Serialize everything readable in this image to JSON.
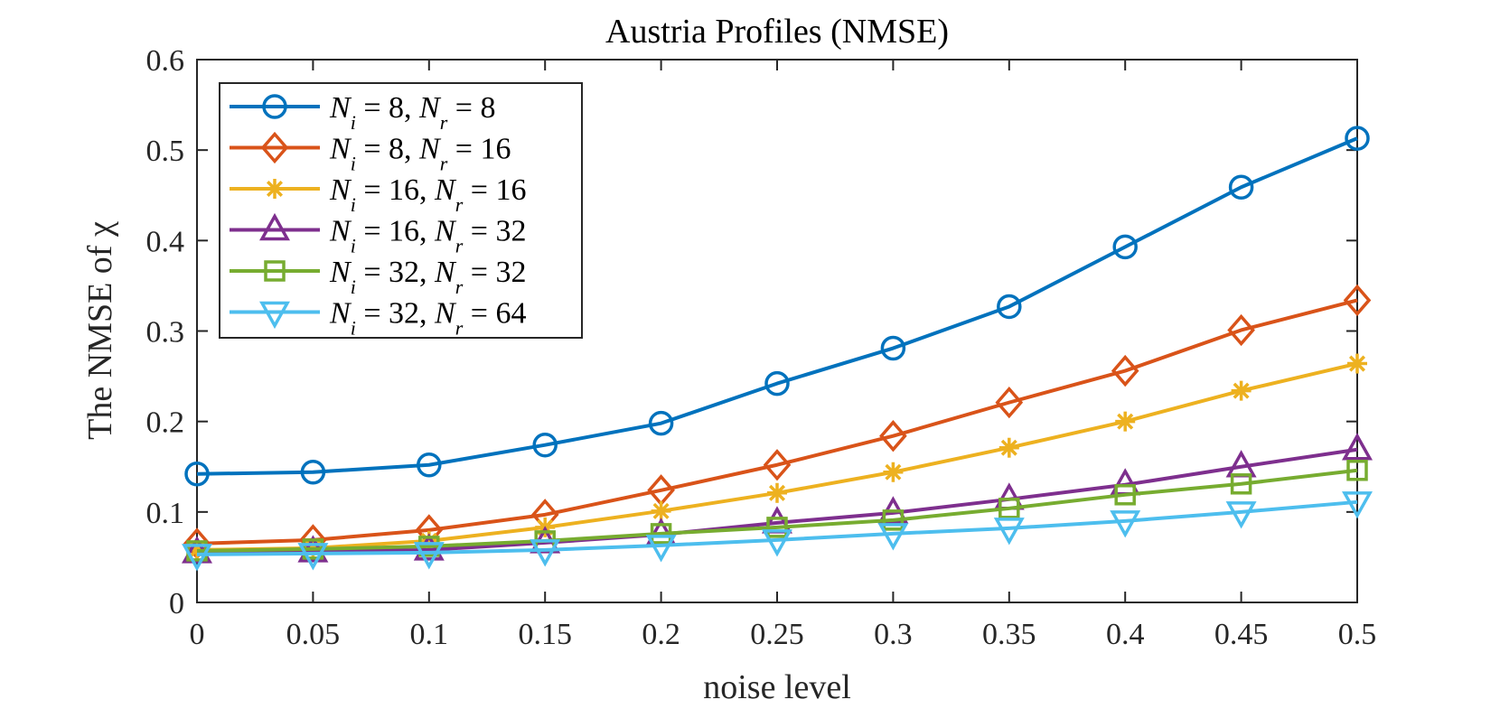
{
  "chart_data": {
    "type": "line",
    "title": "Austria Profiles (NMSE)",
    "xlabel": "noise level",
    "ylabel": "The NMSE of χ",
    "xlim": [
      0,
      0.5
    ],
    "ylim": [
      0,
      0.6
    ],
    "grid": false,
    "legend_position": "top-left",
    "x": [
      0,
      0.05,
      0.1,
      0.15,
      0.2,
      0.25,
      0.3,
      0.35,
      0.4,
      0.45,
      0.5
    ],
    "xticks": [
      "0",
      "0.05",
      "0.1",
      "0.15",
      "0.2",
      "0.25",
      "0.3",
      "0.35",
      "0.4",
      "0.45",
      "0.5"
    ],
    "yticks": [
      "0",
      "0.1",
      "0.2",
      "0.3",
      "0.4",
      "0.5",
      "0.6"
    ],
    "series": [
      {
        "name": "N_i = 8, N_r = 8",
        "label": "Ni = 8, Nr = 8",
        "marker": "circle",
        "color": "#0072BD",
        "values": [
          0.142,
          0.144,
          0.152,
          0.174,
          0.198,
          0.242,
          0.281,
          0.327,
          0.393,
          0.459,
          0.513
        ]
      },
      {
        "name": "N_i = 8, N_r = 16",
        "label": "Ni = 8, Nr = 16",
        "marker": "diamond",
        "color": "#D95319",
        "values": [
          0.065,
          0.069,
          0.08,
          0.097,
          0.124,
          0.152,
          0.184,
          0.221,
          0.256,
          0.301,
          0.334
        ]
      },
      {
        "name": "N_i = 16, N_r = 16",
        "label": "Ni = 16, Nr = 16",
        "marker": "asterisk",
        "color": "#EDB120",
        "values": [
          0.058,
          0.06,
          0.068,
          0.083,
          0.101,
          0.121,
          0.144,
          0.171,
          0.2,
          0.234,
          0.264
        ]
      },
      {
        "name": "N_i = 16, N_r = 32",
        "label": "Ni = 16, Nr = 32",
        "marker": "triangle-up",
        "color": "#7E2F8E",
        "values": [
          0.055,
          0.056,
          0.058,
          0.066,
          0.075,
          0.088,
          0.099,
          0.114,
          0.13,
          0.15,
          0.169
        ]
      },
      {
        "name": "N_i = 32, N_r = 32",
        "label": "Ni = 32, Nr = 32",
        "marker": "square",
        "color": "#77AC30",
        "values": [
          0.057,
          0.059,
          0.062,
          0.068,
          0.076,
          0.083,
          0.091,
          0.104,
          0.119,
          0.131,
          0.146
        ]
      },
      {
        "name": "N_i = 32, N_r = 64",
        "label": "Ni = 32, Nr = 64",
        "marker": "triangle-down",
        "color": "#4DBEEE",
        "values": [
          0.053,
          0.054,
          0.055,
          0.058,
          0.063,
          0.069,
          0.076,
          0.082,
          0.09,
          0.1,
          0.111
        ]
      }
    ],
    "legend": [
      {
        "ni": "8",
        "nr": "8"
      },
      {
        "ni": "8",
        "nr": "16"
      },
      {
        "ni": "16",
        "nr": "16"
      },
      {
        "ni": "16",
        "nr": "32"
      },
      {
        "ni": "32",
        "nr": "32"
      },
      {
        "ni": "32",
        "nr": "64"
      }
    ]
  }
}
